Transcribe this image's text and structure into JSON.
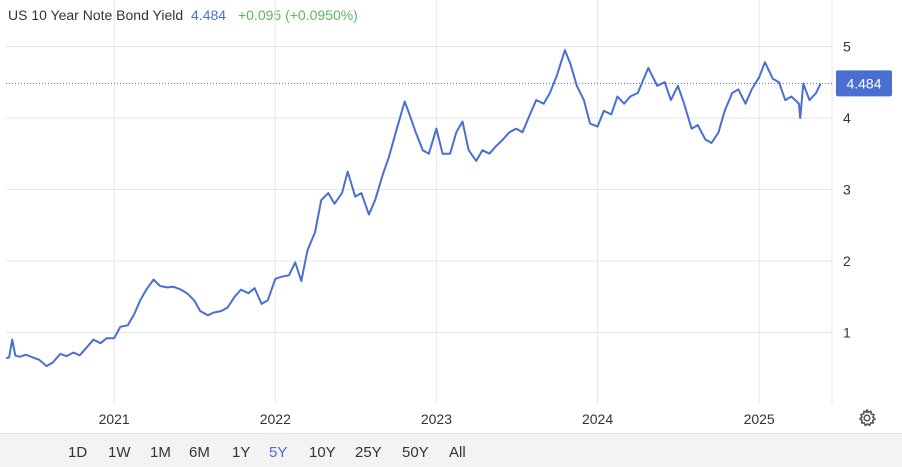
{
  "header": {
    "name": "US 10 Year Note Bond Yield",
    "value": "4.484",
    "change": "+0.095 (+0.0950%)"
  },
  "colors": {
    "line": "#4a6fd1",
    "change_positive": "#5cb85c",
    "grid": "#e6e6e6",
    "badge": "#4a6fd1"
  },
  "ranges": {
    "items": [
      "1D",
      "1W",
      "1M",
      "6M",
      "1Y",
      "5Y",
      "10Y",
      "25Y",
      "50Y",
      "All"
    ],
    "active": "5Y"
  },
  "settings_icon": "gear-icon",
  "chart_data": {
    "type": "line",
    "title": "",
    "xlabel": "",
    "ylabel": "",
    "x_ticks": [
      "2021",
      "2022",
      "2023",
      "2024",
      "2025"
    ],
    "y_ticks": [
      1,
      2,
      3,
      4,
      5
    ],
    "xlim": [
      "2020-05-01",
      "2025-06-15"
    ],
    "ylim": [
      0,
      5.65
    ],
    "grid": true,
    "y_axis_position": "right",
    "current_value_label": "4.484",
    "current_value": 4.484,
    "series": [
      {
        "name": "",
        "points": [
          [
            "2020-05-01",
            0.64
          ],
          [
            "2020-05-08",
            0.65
          ],
          [
            "2020-05-15",
            0.9
          ],
          [
            "2020-05-22",
            0.68
          ],
          [
            "2020-06-01",
            0.66
          ],
          [
            "2020-06-15",
            0.69
          ],
          [
            "2020-07-01",
            0.65
          ],
          [
            "2020-07-15",
            0.62
          ],
          [
            "2020-08-01",
            0.53
          ],
          [
            "2020-08-15",
            0.58
          ],
          [
            "2020-09-01",
            0.7
          ],
          [
            "2020-09-15",
            0.67
          ],
          [
            "2020-10-01",
            0.72
          ],
          [
            "2020-10-15",
            0.68
          ],
          [
            "2020-11-01",
            0.8
          ],
          [
            "2020-11-15",
            0.9
          ],
          [
            "2020-12-01",
            0.85
          ],
          [
            "2020-12-15",
            0.92
          ],
          [
            "2021-01-01",
            0.92
          ],
          [
            "2021-01-15",
            1.08
          ],
          [
            "2021-02-01",
            1.1
          ],
          [
            "2021-02-15",
            1.25
          ],
          [
            "2021-03-01",
            1.45
          ],
          [
            "2021-03-15",
            1.6
          ],
          [
            "2021-03-31",
            1.74
          ],
          [
            "2021-04-15",
            1.65
          ],
          [
            "2021-05-01",
            1.63
          ],
          [
            "2021-05-15",
            1.64
          ],
          [
            "2021-06-01",
            1.6
          ],
          [
            "2021-06-15",
            1.55
          ],
          [
            "2021-07-01",
            1.45
          ],
          [
            "2021-07-15",
            1.3
          ],
          [
            "2021-08-01",
            1.24
          ],
          [
            "2021-08-15",
            1.28
          ],
          [
            "2021-09-01",
            1.3
          ],
          [
            "2021-09-15",
            1.35
          ],
          [
            "2021-10-01",
            1.5
          ],
          [
            "2021-10-15",
            1.6
          ],
          [
            "2021-11-01",
            1.55
          ],
          [
            "2021-11-15",
            1.62
          ],
          [
            "2021-12-01",
            1.4
          ],
          [
            "2021-12-15",
            1.45
          ],
          [
            "2022-01-01",
            1.75
          ],
          [
            "2022-01-15",
            1.78
          ],
          [
            "2022-02-01",
            1.8
          ],
          [
            "2022-02-15",
            1.98
          ],
          [
            "2022-03-01",
            1.72
          ],
          [
            "2022-03-15",
            2.15
          ],
          [
            "2022-04-01",
            2.4
          ],
          [
            "2022-04-15",
            2.85
          ],
          [
            "2022-05-01",
            2.95
          ],
          [
            "2022-05-15",
            2.8
          ],
          [
            "2022-06-01",
            2.95
          ],
          [
            "2022-06-14",
            3.25
          ],
          [
            "2022-07-01",
            2.9
          ],
          [
            "2022-07-15",
            2.95
          ],
          [
            "2022-08-01",
            2.65
          ],
          [
            "2022-08-15",
            2.85
          ],
          [
            "2022-09-01",
            3.2
          ],
          [
            "2022-09-15",
            3.45
          ],
          [
            "2022-10-01",
            3.8
          ],
          [
            "2022-10-21",
            4.23
          ],
          [
            "2022-11-01",
            4.05
          ],
          [
            "2022-11-15",
            3.8
          ],
          [
            "2022-12-01",
            3.55
          ],
          [
            "2022-12-15",
            3.5
          ],
          [
            "2023-01-01",
            3.85
          ],
          [
            "2023-01-15",
            3.5
          ],
          [
            "2023-02-01",
            3.5
          ],
          [
            "2023-02-15",
            3.8
          ],
          [
            "2023-03-01",
            3.95
          ],
          [
            "2023-03-15",
            3.55
          ],
          [
            "2023-04-01",
            3.4
          ],
          [
            "2023-04-15",
            3.55
          ],
          [
            "2023-05-01",
            3.5
          ],
          [
            "2023-05-15",
            3.6
          ],
          [
            "2023-06-01",
            3.7
          ],
          [
            "2023-06-15",
            3.8
          ],
          [
            "2023-07-01",
            3.85
          ],
          [
            "2023-07-15",
            3.8
          ],
          [
            "2023-08-01",
            4.05
          ],
          [
            "2023-08-15",
            4.25
          ],
          [
            "2023-09-01",
            4.2
          ],
          [
            "2023-09-15",
            4.35
          ],
          [
            "2023-10-01",
            4.6
          ],
          [
            "2023-10-19",
            4.95
          ],
          [
            "2023-11-01",
            4.75
          ],
          [
            "2023-11-15",
            4.45
          ],
          [
            "2023-12-01",
            4.25
          ],
          [
            "2023-12-15",
            3.92
          ],
          [
            "2024-01-01",
            3.88
          ],
          [
            "2024-01-15",
            4.1
          ],
          [
            "2024-02-01",
            4.05
          ],
          [
            "2024-02-15",
            4.3
          ],
          [
            "2024-03-01",
            4.2
          ],
          [
            "2024-03-15",
            4.3
          ],
          [
            "2024-04-01",
            4.35
          ],
          [
            "2024-04-25",
            4.7
          ],
          [
            "2024-05-15",
            4.45
          ],
          [
            "2024-06-01",
            4.5
          ],
          [
            "2024-06-15",
            4.25
          ],
          [
            "2024-07-01",
            4.45
          ],
          [
            "2024-07-15",
            4.2
          ],
          [
            "2024-08-01",
            3.85
          ],
          [
            "2024-08-15",
            3.9
          ],
          [
            "2024-09-01",
            3.7
          ],
          [
            "2024-09-15",
            3.65
          ],
          [
            "2024-10-01",
            3.8
          ],
          [
            "2024-10-15",
            4.1
          ],
          [
            "2024-11-01",
            4.35
          ],
          [
            "2024-11-15",
            4.4
          ],
          [
            "2024-12-01",
            4.2
          ],
          [
            "2024-12-15",
            4.4
          ],
          [
            "2025-01-01",
            4.57
          ],
          [
            "2025-01-14",
            4.78
          ],
          [
            "2025-02-01",
            4.55
          ],
          [
            "2025-02-15",
            4.5
          ],
          [
            "2025-03-01",
            4.25
          ],
          [
            "2025-03-15",
            4.3
          ],
          [
            "2025-04-01",
            4.2
          ],
          [
            "2025-04-04",
            4.0
          ],
          [
            "2025-04-11",
            4.48
          ],
          [
            "2025-04-25",
            4.25
          ],
          [
            "2025-05-10",
            4.35
          ],
          [
            "2025-05-20",
            4.48
          ]
        ]
      }
    ]
  }
}
